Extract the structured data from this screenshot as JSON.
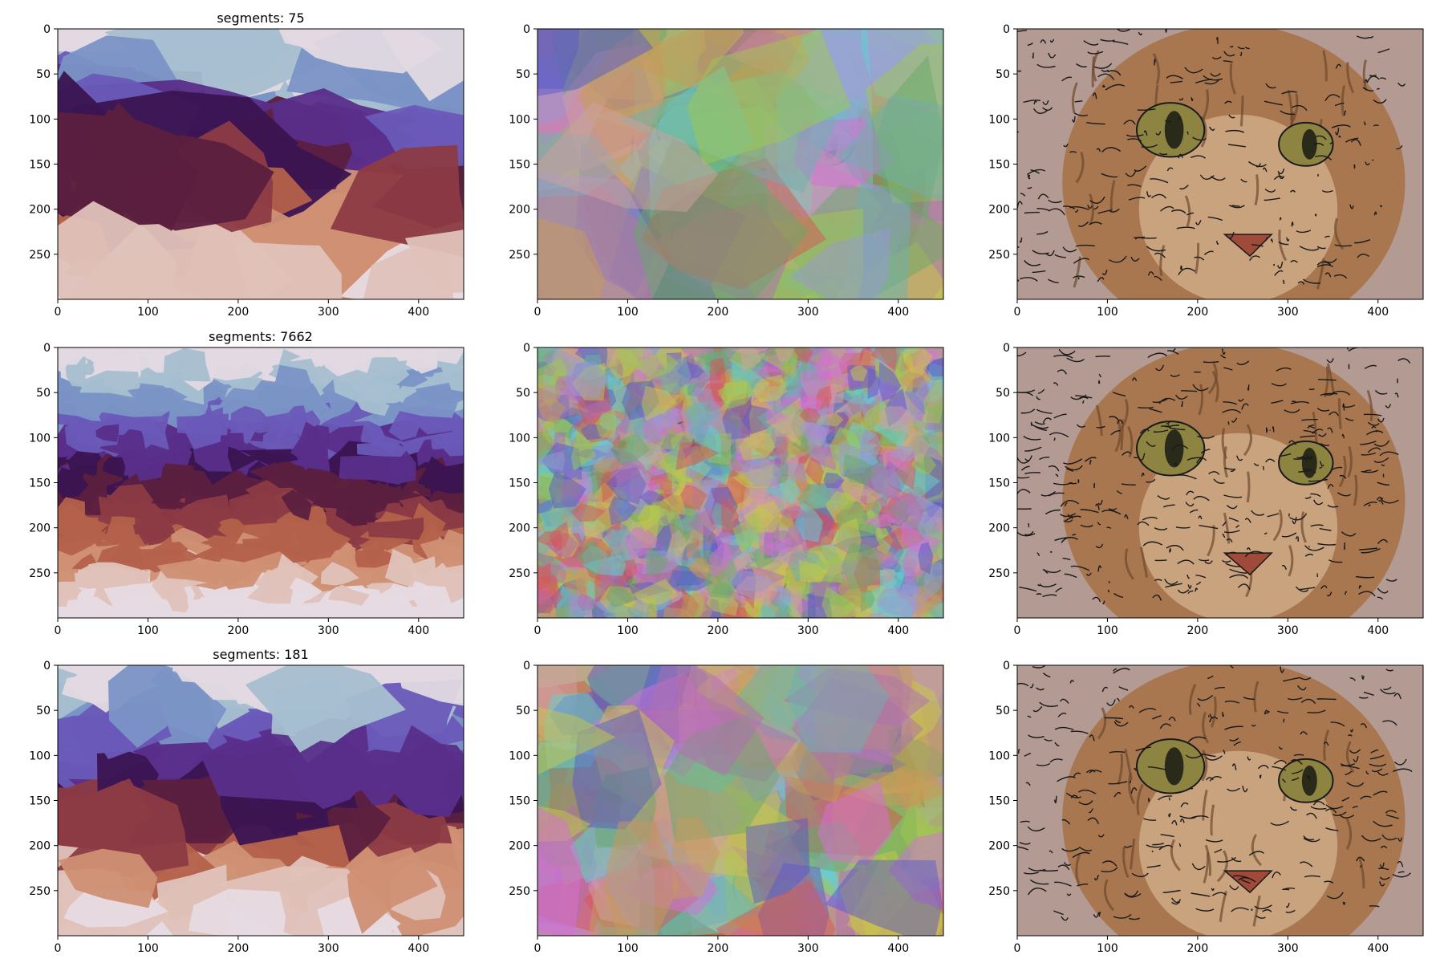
{
  "figure": {
    "background": "#ffffff",
    "rows": 3,
    "cols": 3
  },
  "chart_data": [
    {
      "type": "heatmap",
      "title": "segments: 75",
      "variant": "label-map",
      "colormap": "twilight",
      "segments": 75,
      "xlim": [
        0,
        450
      ],
      "ylim": [
        300,
        0
      ],
      "xticks": [
        0,
        100,
        200,
        300,
        400
      ],
      "yticks": [
        0,
        50,
        100,
        150,
        200,
        250
      ],
      "grid": false
    },
    {
      "type": "heatmap",
      "title": "",
      "variant": "overlay",
      "segments": 75,
      "xlim": [
        0,
        450
      ],
      "ylim": [
        300,
        0
      ],
      "xticks": [
        0,
        100,
        200,
        300,
        400
      ],
      "yticks": [
        0,
        50,
        100,
        150,
        200,
        250
      ],
      "grid": false
    },
    {
      "type": "heatmap",
      "title": "",
      "variant": "boundaries",
      "segments": 75,
      "xlim": [
        0,
        450
      ],
      "ylim": [
        300,
        0
      ],
      "xticks": [
        0,
        100,
        200,
        300,
        400
      ],
      "yticks": [
        0,
        50,
        100,
        150,
        200,
        250
      ],
      "grid": false
    },
    {
      "type": "heatmap",
      "title": "segments: 7662",
      "variant": "label-map",
      "colormap": "twilight",
      "segments": 7662,
      "xlim": [
        0,
        450
      ],
      "ylim": [
        300,
        0
      ],
      "xticks": [
        0,
        100,
        200,
        300,
        400
      ],
      "yticks": [
        0,
        50,
        100,
        150,
        200,
        250
      ],
      "grid": false
    },
    {
      "type": "heatmap",
      "title": "",
      "variant": "overlay",
      "segments": 7662,
      "xlim": [
        0,
        450
      ],
      "ylim": [
        300,
        0
      ],
      "xticks": [
        0,
        100,
        200,
        300,
        400
      ],
      "yticks": [
        0,
        50,
        100,
        150,
        200,
        250
      ],
      "grid": false
    },
    {
      "type": "heatmap",
      "title": "",
      "variant": "boundaries",
      "segments": 7662,
      "xlim": [
        0,
        450
      ],
      "ylim": [
        300,
        0
      ],
      "xticks": [
        0,
        100,
        200,
        300,
        400
      ],
      "yticks": [
        0,
        50,
        100,
        150,
        200,
        250
      ],
      "grid": false
    },
    {
      "type": "heatmap",
      "title": "segments: 181",
      "variant": "label-map",
      "colormap": "twilight",
      "segments": 181,
      "xlim": [
        0,
        450
      ],
      "ylim": [
        300,
        0
      ],
      "xticks": [
        0,
        100,
        200,
        300,
        400
      ],
      "yticks": [
        0,
        50,
        100,
        150,
        200,
        250
      ],
      "grid": false
    },
    {
      "type": "heatmap",
      "title": "",
      "variant": "overlay",
      "segments": 181,
      "xlim": [
        0,
        450
      ],
      "ylim": [
        300,
        0
      ],
      "xticks": [
        0,
        100,
        200,
        300,
        400
      ],
      "yticks": [
        0,
        50,
        100,
        150,
        200,
        250
      ],
      "grid": false
    },
    {
      "type": "heatmap",
      "title": "",
      "variant": "boundaries",
      "segments": 181,
      "xlim": [
        0,
        450
      ],
      "ylim": [
        300,
        0
      ],
      "xticks": [
        0,
        100,
        200,
        300,
        400
      ],
      "yticks": [
        0,
        50,
        100,
        150,
        200,
        250
      ],
      "grid": false
    }
  ],
  "palettes": {
    "twilight": [
      "#e2d9e2",
      "#a6bfd0",
      "#7b93c6",
      "#6a5ab8",
      "#5a2e8a",
      "#3b1451",
      "#5b1f3f",
      "#8c3b45",
      "#b4614b",
      "#cf9074",
      "#dfc2b9",
      "#e6dbe2"
    ],
    "overlay": [
      "#d65555",
      "#5fd2d2",
      "#5a5ac8",
      "#c8c84a",
      "#d670d6",
      "#6aa86a",
      "#9a9ad0",
      "#d0a0a0",
      "#a0c850",
      "#b070b0",
      "#70b0b0",
      "#c89a5a"
    ],
    "cat": {
      "fur_light": "#c9a27e",
      "fur_mid": "#a8774f",
      "fur_dark": "#6e4a2d",
      "background": "#b39a92",
      "eye": "#8c8440",
      "pupil": "#2a2a1a",
      "nose": "#a04a3a",
      "boundary": "#1a1a1a"
    }
  }
}
